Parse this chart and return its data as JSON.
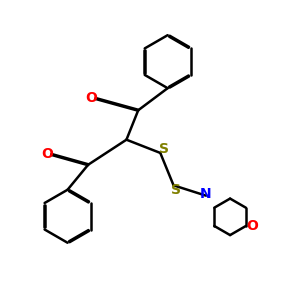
{
  "background_color": "#ffffff",
  "bond_color": "#000000",
  "oxygen_color": "#ff0000",
  "sulfur_color": "#808000",
  "nitrogen_color": "#0000ff",
  "lw": 1.8,
  "dbo": 0.018,
  "figsize": [
    3.0,
    3.0
  ],
  "dpi": 100,
  "xlim": [
    0,
    10
  ],
  "ylim": [
    0,
    10
  ]
}
